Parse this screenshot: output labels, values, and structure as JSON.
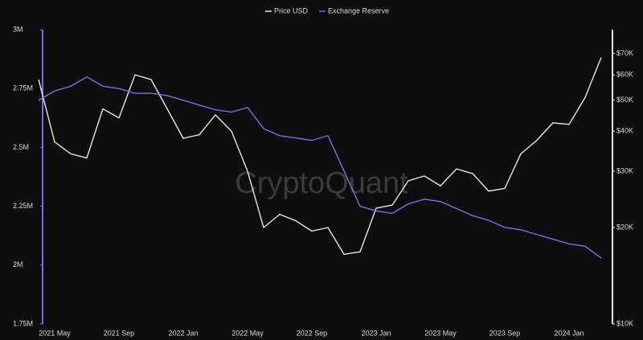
{
  "chart_data": {
    "type": "line",
    "watermark": "CryptoQuant",
    "categories": [
      null,
      "2021 May",
      null,
      null,
      null,
      "2021 Sep",
      null,
      null,
      null,
      "2022 Jan",
      null,
      null,
      null,
      "2022 May",
      null,
      null,
      null,
      "2022 Sep",
      null,
      null,
      null,
      "2023 Jan",
      null,
      null,
      null,
      "2023 May",
      null,
      null,
      null,
      "2023 Sep",
      null,
      null,
      null,
      "2024 Jan",
      null,
      null
    ],
    "series": [
      {
        "name": "Price USD",
        "color": "#e6e6e6",
        "axis": "y2",
        "values": [
          58000,
          37000,
          34000,
          33000,
          47000,
          44000,
          60000,
          58000,
          47000,
          38000,
          39000,
          45000,
          40000,
          30000,
          20000,
          22000,
          21000,
          19500,
          20000,
          16500,
          16800,
          23000,
          23500,
          28000,
          29000,
          27000,
          30500,
          29500,
          26000,
          26500,
          34000,
          37500,
          42500,
          42000,
          51000,
          68000
        ]
      },
      {
        "name": "Exchange Reserve",
        "color": "#7b6fe0",
        "values": [
          2700000,
          2740000,
          2760000,
          2800000,
          2760000,
          2750000,
          2730000,
          2730000,
          2720000,
          2700000,
          2680000,
          2660000,
          2650000,
          2670000,
          2580000,
          2550000,
          2540000,
          2530000,
          2550000,
          2400000,
          2250000,
          2230000,
          2220000,
          2260000,
          2280000,
          2270000,
          2240000,
          2210000,
          2190000,
          2160000,
          2150000,
          2130000,
          2110000,
          2090000,
          2080000,
          2030000
        ]
      }
    ],
    "ylim": [
      1750000,
      3000000
    ],
    "yticks": [
      {
        "value": 1750000,
        "label": "1.75M"
      },
      {
        "value": 2000000,
        "label": "2M"
      },
      {
        "value": 2250000,
        "label": "2.25M"
      },
      {
        "value": 2500000,
        "label": "2.5M"
      },
      {
        "value": 2750000,
        "label": "2.75M"
      },
      {
        "value": 3000000,
        "label": "3M"
      }
    ],
    "y2lim": [
      10000,
      83000
    ],
    "y2_log": true,
    "y2ticks": [
      {
        "value": 10000,
        "label": "$10K"
      },
      {
        "value": 20000,
        "label": "$20K"
      },
      {
        "value": 30000,
        "label": "$30K"
      },
      {
        "value": 40000,
        "label": "$40K"
      },
      {
        "value": 50000,
        "label": "$50K"
      },
      {
        "value": 60000,
        "label": "$60K"
      },
      {
        "value": 70000,
        "label": "$70K"
      }
    ],
    "legend": "top"
  }
}
